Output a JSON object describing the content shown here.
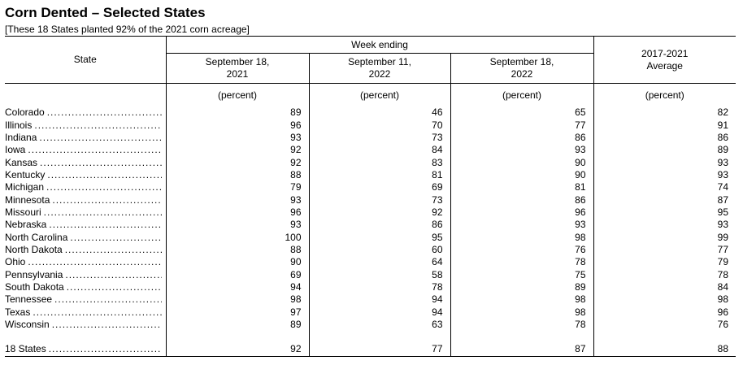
{
  "title": "Corn Dented – Selected States",
  "subtitle": "[These 18 States planted 92% of the 2021 corn acreage]",
  "header": {
    "state": "State",
    "week_ending": "Week ending",
    "col1": "September 18,\n2021",
    "col2": "September 11,\n2022",
    "col3": "September 18,\n2022",
    "col4": "2017-2021\nAverage",
    "unit": "(percent)"
  },
  "rows": [
    {
      "state": "Colorado",
      "values": [
        "89",
        "46",
        "65",
        "82"
      ]
    },
    {
      "state": "Illinois",
      "values": [
        "96",
        "70",
        "77",
        "91"
      ]
    },
    {
      "state": "Indiana",
      "values": [
        "93",
        "73",
        "86",
        "86"
      ]
    },
    {
      "state": "Iowa",
      "values": [
        "92",
        "84",
        "93",
        "89"
      ]
    },
    {
      "state": "Kansas",
      "values": [
        "92",
        "83",
        "90",
        "93"
      ]
    },
    {
      "state": "Kentucky",
      "values": [
        "88",
        "81",
        "90",
        "93"
      ]
    },
    {
      "state": "Michigan",
      "values": [
        "79",
        "69",
        "81",
        "74"
      ]
    },
    {
      "state": "Minnesota",
      "values": [
        "93",
        "73",
        "86",
        "87"
      ]
    },
    {
      "state": "Missouri",
      "values": [
        "96",
        "92",
        "96",
        "95"
      ]
    },
    {
      "state": "Nebraska",
      "values": [
        "93",
        "86",
        "93",
        "93"
      ]
    },
    {
      "state": "North Carolina",
      "values": [
        "100",
        "95",
        "98",
        "99"
      ]
    },
    {
      "state": "North Dakota",
      "values": [
        "88",
        "60",
        "76",
        "77"
      ]
    },
    {
      "state": "Ohio",
      "values": [
        "90",
        "64",
        "78",
        "79"
      ]
    },
    {
      "state": "Pennsylvania",
      "values": [
        "69",
        "58",
        "75",
        "78"
      ]
    },
    {
      "state": "South Dakota",
      "values": [
        "94",
        "78",
        "89",
        "84"
      ]
    },
    {
      "state": "Tennessee",
      "values": [
        "98",
        "94",
        "98",
        "98"
      ]
    },
    {
      "state": "Texas",
      "values": [
        "97",
        "94",
        "98",
        "96"
      ]
    },
    {
      "state": "Wisconsin",
      "values": [
        "89",
        "63",
        "78",
        "76"
      ]
    }
  ],
  "total": {
    "state": "18 States",
    "values": [
      "92",
      "77",
      "87",
      "88"
    ]
  }
}
